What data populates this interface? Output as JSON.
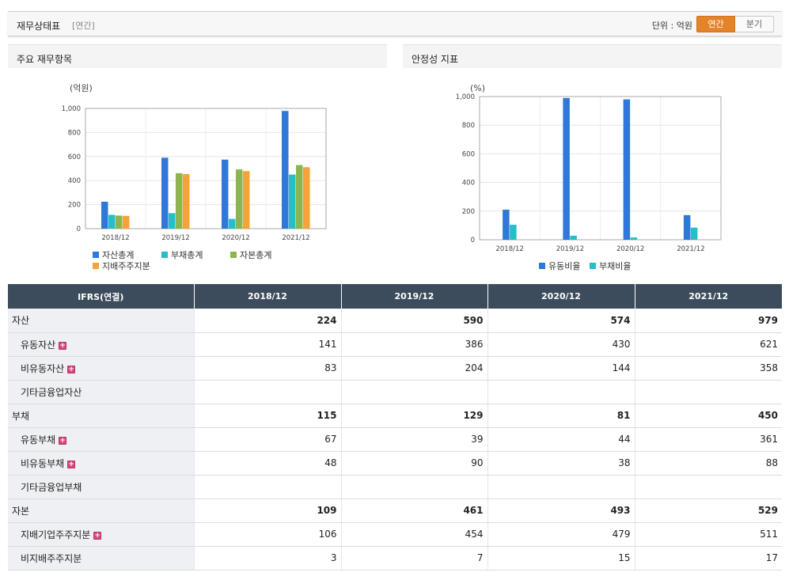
{
  "header": {
    "title": "재무상태표",
    "sub": "[연간]",
    "unit_label": "단위 : 억원",
    "toggle_annual": "연간",
    "toggle_quarter": "분기"
  },
  "colors": {
    "blue": "#2f78d8",
    "cyan": "#26bfc8",
    "green": "#8db54f",
    "orange": "#f5a23a",
    "header_bg": "#3d4c5c",
    "accent": "#e3832a"
  },
  "chart_data": [
    {
      "type": "bar",
      "title": "주요 재무항목",
      "ylabel": "(억원)",
      "ylim": [
        0,
        1000
      ],
      "yticks": [
        "0",
        "200",
        "400",
        "600",
        "800",
        "1,000"
      ],
      "categories": [
        "2018/12",
        "2019/12",
        "2020/12",
        "2021/12"
      ],
      "series": [
        {
          "name": "자산총계",
          "color": "#2f78d8",
          "values": [
            224,
            590,
            574,
            979
          ]
        },
        {
          "name": "부채총계",
          "color": "#26bfc8",
          "values": [
            115,
            129,
            81,
            450
          ]
        },
        {
          "name": "자본총계",
          "color": "#8db54f",
          "values": [
            109,
            461,
            493,
            529
          ]
        },
        {
          "name": "지배주주지분",
          "color": "#f5a23a",
          "values": [
            106,
            454,
            479,
            511
          ]
        }
      ],
      "legend_position": "bottom-left",
      "grid": true
    },
    {
      "type": "bar",
      "title": "안정성 지표",
      "ylabel": "(%)",
      "ylim": [
        0,
        1000
      ],
      "yticks": [
        "0",
        "200",
        "400",
        "600",
        "800",
        "1,000"
      ],
      "categories": [
        "2018/12",
        "2019/12",
        "2020/12",
        "2021/12"
      ],
      "series": [
        {
          "name": "유동비율",
          "color": "#2f78d8",
          "values": [
            210,
            990,
            980,
            172
          ]
        },
        {
          "name": "부채비율",
          "color": "#26bfc8",
          "values": [
            105,
            28,
            16,
            85
          ]
        }
      ],
      "legend_position": "bottom-center",
      "grid": true
    }
  ],
  "table": {
    "columns": [
      "IFRS(연결)",
      "2018/12",
      "2019/12",
      "2020/12",
      "2021/12"
    ],
    "rows": [
      {
        "label": "자산",
        "level": 0,
        "bold": true,
        "expand": false,
        "values": [
          "224",
          "590",
          "574",
          "979"
        ]
      },
      {
        "label": "유동자산",
        "level": 1,
        "bold": false,
        "expand": true,
        "values": [
          "141",
          "386",
          "430",
          "621"
        ]
      },
      {
        "label": "비유동자산",
        "level": 1,
        "bold": false,
        "expand": true,
        "values": [
          "83",
          "204",
          "144",
          "358"
        ]
      },
      {
        "label": "기타금융업자산",
        "level": 1,
        "bold": false,
        "expand": false,
        "values": [
          "",
          "",
          "",
          ""
        ]
      },
      {
        "label": "부채",
        "level": 0,
        "bold": true,
        "expand": false,
        "values": [
          "115",
          "129",
          "81",
          "450"
        ]
      },
      {
        "label": "유동부채",
        "level": 1,
        "bold": false,
        "expand": true,
        "values": [
          "67",
          "39",
          "44",
          "361"
        ]
      },
      {
        "label": "비유동부채",
        "level": 1,
        "bold": false,
        "expand": true,
        "values": [
          "48",
          "90",
          "38",
          "88"
        ]
      },
      {
        "label": "기타금융업부채",
        "level": 1,
        "bold": false,
        "expand": false,
        "values": [
          "",
          "",
          "",
          ""
        ]
      },
      {
        "label": "자본",
        "level": 0,
        "bold": true,
        "expand": false,
        "values": [
          "109",
          "461",
          "493",
          "529"
        ]
      },
      {
        "label": "지배기업주주지분",
        "level": 1,
        "bold": false,
        "expand": true,
        "values": [
          "106",
          "454",
          "479",
          "511"
        ]
      },
      {
        "label": "비지배주주지분",
        "level": 1,
        "bold": false,
        "expand": false,
        "values": [
          "3",
          "7",
          "15",
          "17"
        ]
      }
    ],
    "expand_icon": "+"
  }
}
